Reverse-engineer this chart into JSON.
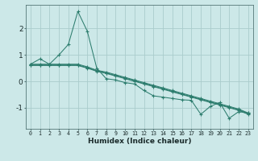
{
  "title": "",
  "xlabel": "Humidex (Indice chaleur)",
  "background_color": "#cce8e8",
  "grid_color": "#aacccc",
  "line_color": "#2d7d6e",
  "hours": [
    0,
    1,
    2,
    3,
    4,
    5,
    6,
    7,
    8,
    9,
    10,
    11,
    12,
    13,
    14,
    15,
    16,
    17,
    18,
    19,
    20,
    21,
    22,
    23
  ],
  "y_main": [
    0.65,
    0.85,
    0.65,
    1.0,
    1.4,
    2.65,
    1.9,
    0.5,
    0.1,
    0.05,
    -0.05,
    -0.1,
    -0.35,
    -0.55,
    -0.6,
    -0.65,
    -0.7,
    -0.72,
    -1.25,
    -0.95,
    -0.8,
    -1.4,
    -1.15,
    -1.2
  ],
  "y_upper": [
    0.65,
    0.65,
    0.65,
    0.65,
    0.65,
    0.65,
    0.55,
    0.42,
    0.35,
    0.25,
    0.15,
    0.05,
    -0.05,
    -0.15,
    -0.25,
    -0.35,
    -0.45,
    -0.55,
    -0.65,
    -0.75,
    -0.85,
    -0.95,
    -1.05,
    -1.2
  ],
  "y_lower": [
    0.6,
    0.6,
    0.6,
    0.6,
    0.6,
    0.6,
    0.5,
    0.38,
    0.3,
    0.2,
    0.1,
    0.0,
    -0.1,
    -0.2,
    -0.3,
    -0.4,
    -0.5,
    -0.6,
    -0.7,
    -0.8,
    -0.9,
    -1.0,
    -1.1,
    -1.25
  ],
  "y_mid": [
    0.62,
    0.62,
    0.62,
    0.62,
    0.62,
    0.62,
    0.52,
    0.4,
    0.32,
    0.22,
    0.12,
    0.02,
    -0.08,
    -0.18,
    -0.28,
    -0.38,
    -0.48,
    -0.58,
    -0.68,
    -0.78,
    -0.88,
    -0.98,
    -1.08,
    -1.22
  ],
  "ylim": [
    -1.8,
    2.9
  ],
  "yticks": [
    -1,
    0,
    1,
    2
  ],
  "xlim": [
    -0.5,
    23.5
  ],
  "xticks": [
    0,
    1,
    2,
    3,
    4,
    5,
    6,
    7,
    8,
    9,
    10,
    11,
    12,
    13,
    14,
    15,
    16,
    17,
    18,
    19,
    20,
    21,
    22,
    23
  ]
}
